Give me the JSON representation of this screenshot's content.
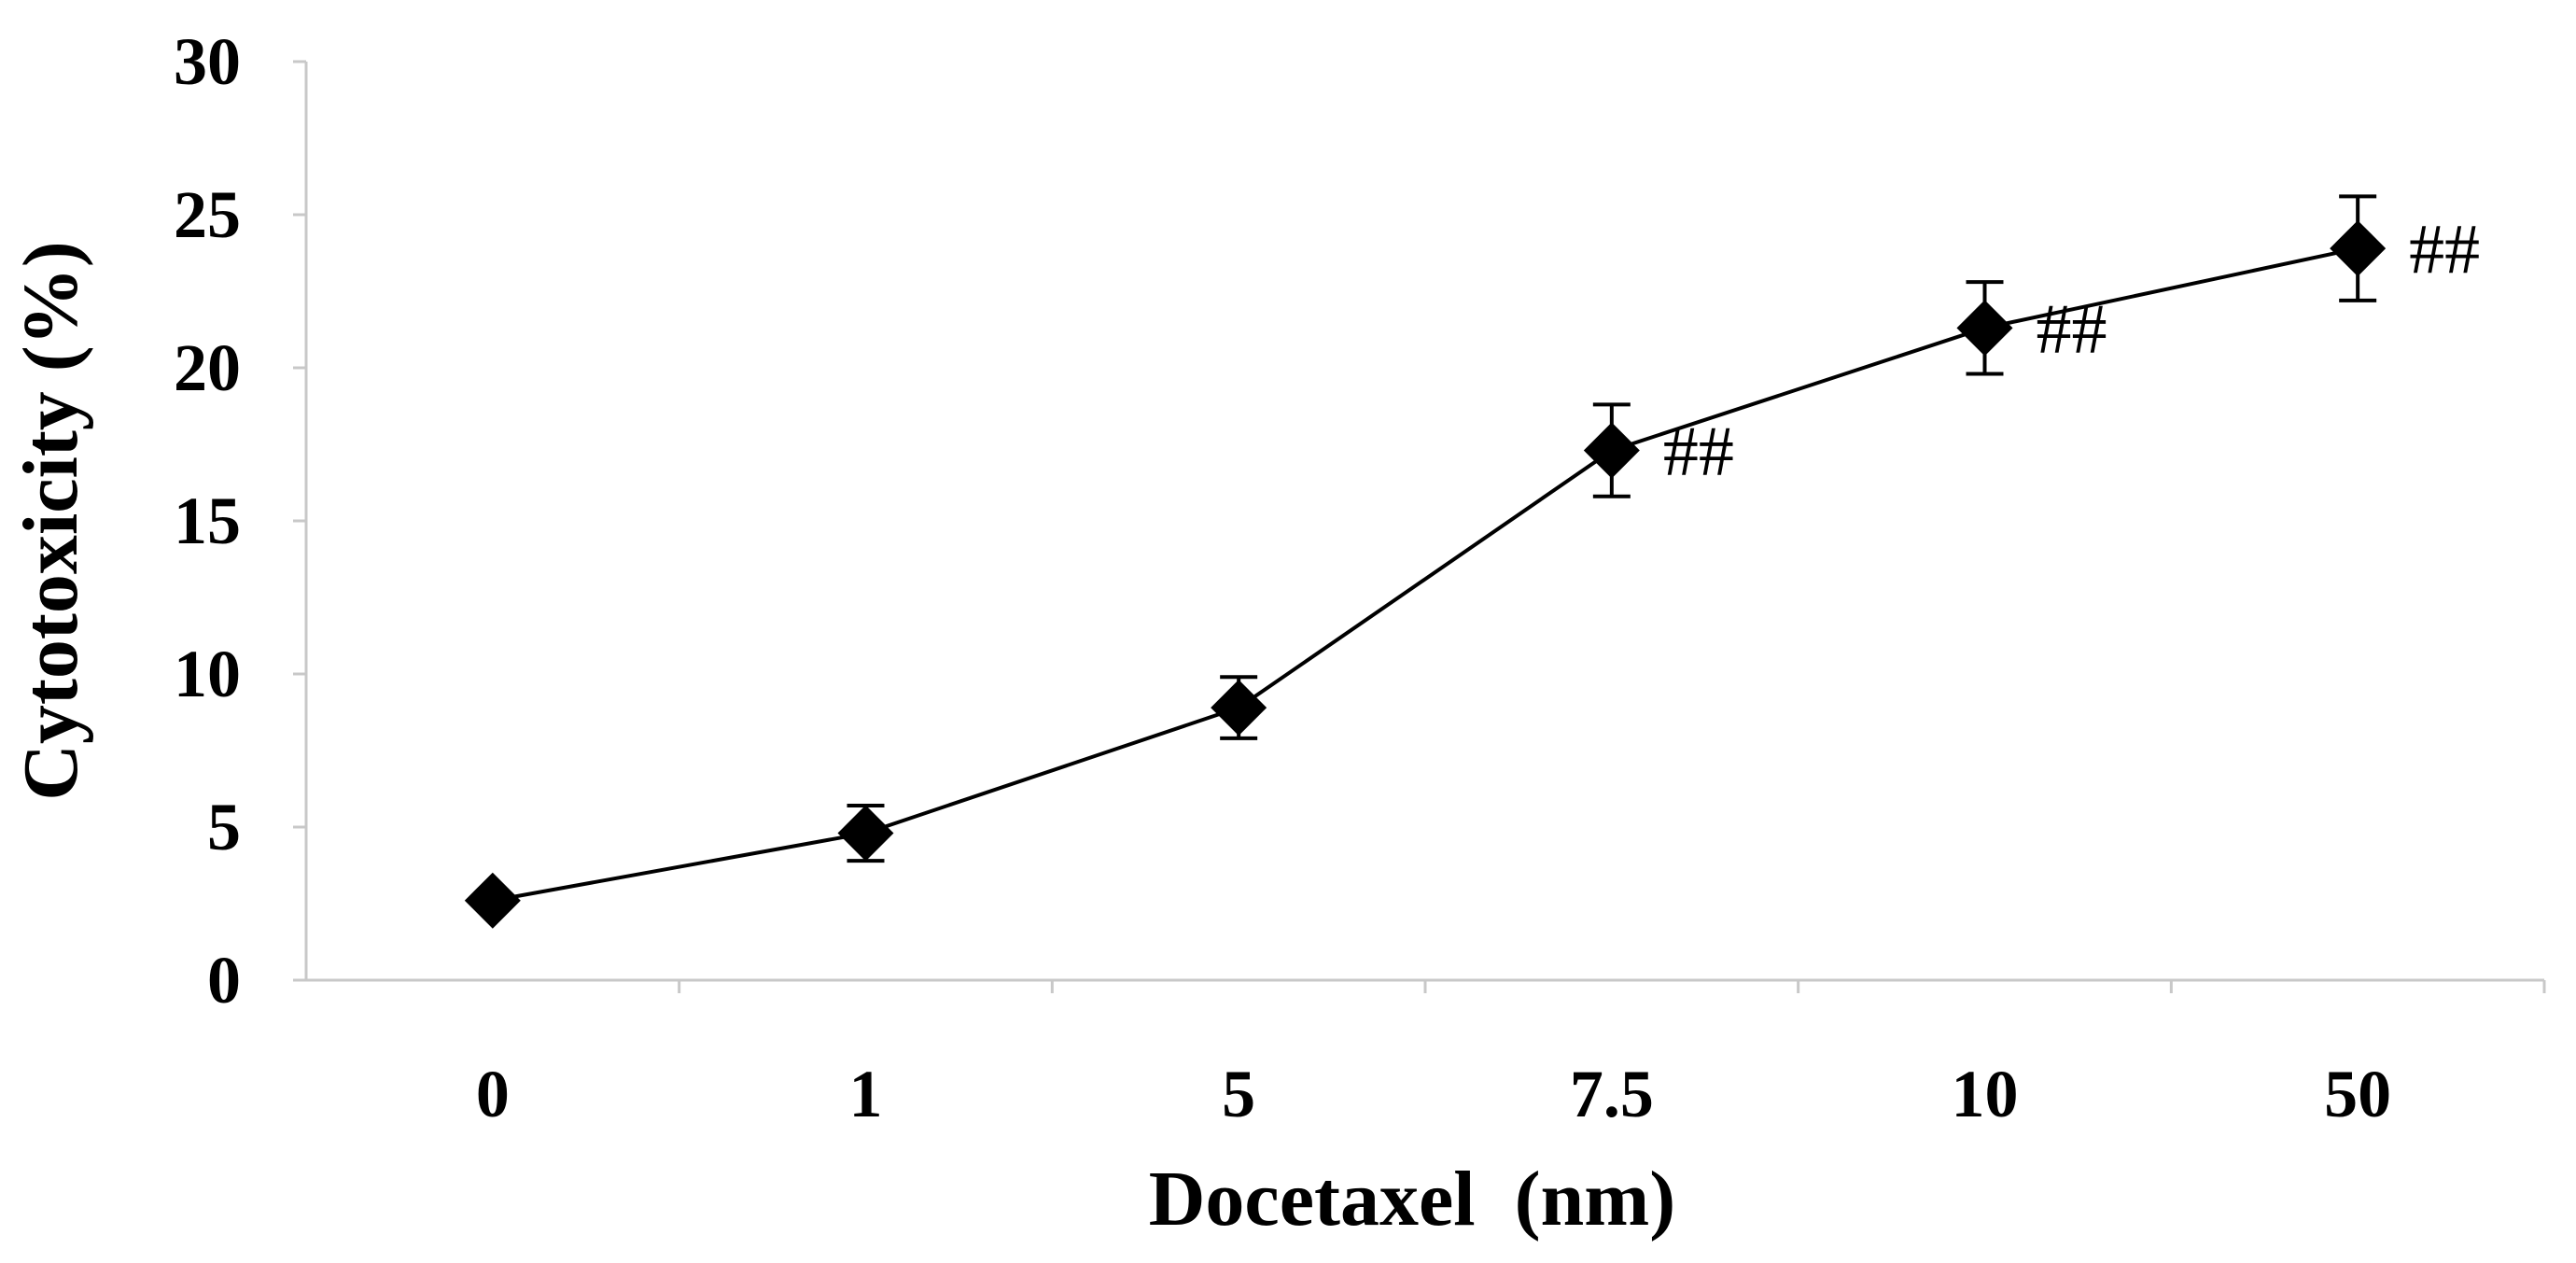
{
  "chart_data": {
    "type": "line",
    "categories": [
      "0",
      "1",
      "5",
      "7.5",
      "10",
      "50"
    ],
    "series": [
      {
        "values": [
          2.6,
          4.8,
          8.9,
          17.3,
          21.3,
          23.9
        ],
        "errors": [
          0.2,
          0.9,
          1.0,
          1.5,
          1.5,
          1.7
        ],
        "annotations": [
          "",
          "",
          "",
          "##",
          "##",
          "##"
        ]
      }
    ],
    "xlabel": "Docetaxel  (nm)",
    "ylabel": "Cytotoxicity (%)",
    "ylim": [
      0,
      30
    ],
    "yticks": [
      "0",
      "5",
      "10",
      "15",
      "20",
      "25",
      "30"
    ],
    "marker": "diamond",
    "grid": false,
    "colors": {
      "series": "#000000",
      "axis": "#c8c8c8"
    }
  }
}
